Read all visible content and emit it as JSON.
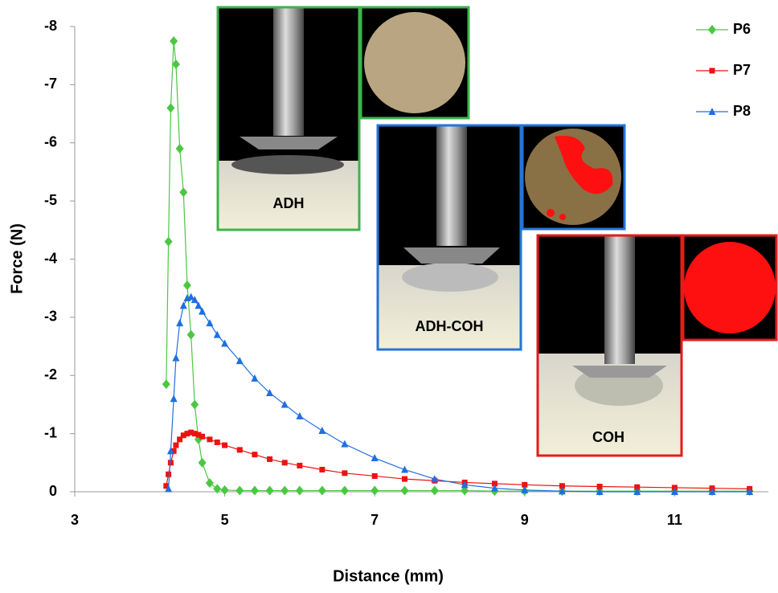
{
  "chart_data": {
    "type": "line",
    "x_label": "Distance (mm)",
    "y_label": "Force (N)",
    "x": [
      4.22,
      4.25,
      4.28,
      4.32,
      4.35,
      4.4,
      4.45,
      4.5,
      4.55,
      4.6,
      4.65,
      4.7,
      4.8,
      4.9,
      5.0,
      5.2,
      5.4,
      5.6,
      5.8,
      6.0,
      6.3,
      6.6,
      7.0,
      7.4,
      7.8,
      8.2,
      8.6,
      9.0,
      9.5,
      10.0,
      10.5,
      11.0,
      11.5,
      12.0
    ],
    "series": [
      {
        "name": "P6",
        "color": "#4cc744",
        "marker": "diamond",
        "values": [
          -1.85,
          -4.3,
          -6.6,
          -7.75,
          -7.35,
          -5.9,
          -5.15,
          -3.55,
          -2.7,
          -1.5,
          -0.9,
          -0.5,
          -0.15,
          -0.05,
          -0.03,
          -0.02,
          -0.02,
          -0.02,
          -0.02,
          -0.02,
          -0.02,
          -0.02,
          -0.02,
          -0.02,
          -0.02,
          -0.02,
          -0.01,
          -0.01,
          -0.01,
          -0.01,
          -0.01,
          -0.01,
          -0.01,
          -0.01
        ]
      },
      {
        "name": "P7",
        "color": "#ee1111",
        "marker": "square",
        "values": [
          -0.1,
          -0.3,
          -0.5,
          -0.7,
          -0.8,
          -0.9,
          -0.97,
          -1.0,
          -1.02,
          -1.0,
          -0.98,
          -0.95,
          -0.9,
          -0.85,
          -0.8,
          -0.72,
          -0.64,
          -0.56,
          -0.5,
          -0.45,
          -0.38,
          -0.32,
          -0.27,
          -0.22,
          -0.19,
          -0.16,
          -0.14,
          -0.12,
          -0.1,
          -0.09,
          -0.08,
          -0.07,
          -0.06,
          -0.05
        ]
      },
      {
        "name": "P8",
        "color": "#1f6fe0",
        "marker": "triangle",
        "values": [
          null,
          -0.05,
          -0.7,
          -1.6,
          -2.3,
          -2.9,
          -3.2,
          -3.33,
          -3.35,
          -3.3,
          -3.2,
          -3.1,
          -2.9,
          -2.7,
          -2.55,
          -2.25,
          -1.95,
          -1.7,
          -1.5,
          -1.3,
          -1.05,
          -0.82,
          -0.58,
          -0.38,
          -0.22,
          -0.12,
          -0.06,
          -0.03,
          -0.01,
          0,
          0,
          0,
          0,
          0
        ]
      }
    ],
    "xlim": [
      3,
      12.25
    ],
    "xticks": [
      3,
      5,
      7,
      9,
      11
    ],
    "ylim": [
      0,
      -8
    ],
    "yticks": [
      0,
      -1,
      -2,
      -3,
      -4,
      -5,
      -6,
      -7,
      -8
    ],
    "grid": false,
    "annotations": [
      "ADH",
      "ADH-COH",
      "COH"
    ]
  }
}
